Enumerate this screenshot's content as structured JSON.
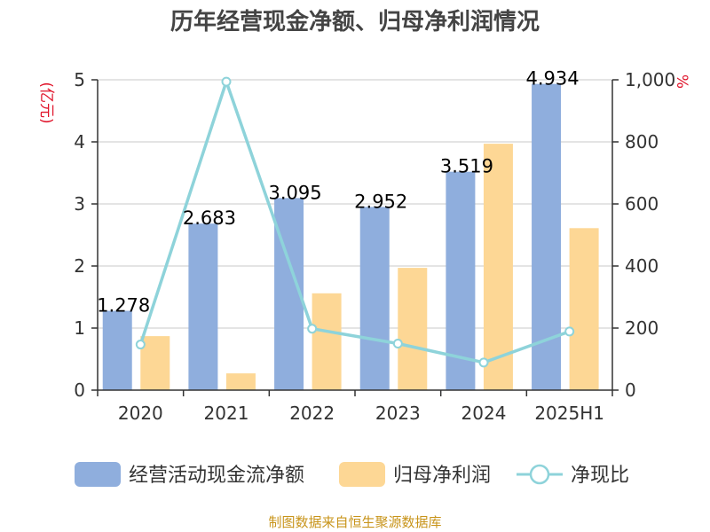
{
  "colors": {
    "bar_cash": "#8FAEDD",
    "bar_profit": "#FDD795",
    "line": "#8ED3DA",
    "axis": "#333333",
    "grid": "#C8C8C8",
    "unit": "#E0142A",
    "source": "#C8941A"
  },
  "chart_data": {
    "type": "bar",
    "title": "历年经营现金净额、归母净利润情况",
    "categories": [
      "2020",
      "2021",
      "2022",
      "2023",
      "2024",
      "2025H1"
    ],
    "left_axis": {
      "unit_label": "(亿元)",
      "min": 0,
      "max": 5,
      "ticks": [
        0,
        1,
        2,
        3,
        4,
        5
      ],
      "tick_labels": [
        "0",
        "1",
        "2",
        "3",
        "4",
        "5"
      ]
    },
    "right_axis": {
      "unit_label": "%",
      "min": 0,
      "max": 1000,
      "ticks": [
        0,
        200,
        400,
        600,
        800,
        1000
      ],
      "tick_labels": [
        "0",
        "200",
        "400",
        "600",
        "800",
        "1,000"
      ]
    },
    "series": [
      {
        "name": "经营活动现金流净额",
        "kind": "bar",
        "axis": "left",
        "values": [
          1.278,
          2.683,
          3.095,
          2.952,
          3.519,
          4.934
        ],
        "data_labels": [
          "1.278",
          "2.683",
          "3.095",
          "2.952",
          "3.519",
          "4.934"
        ]
      },
      {
        "name": "归母净利润",
        "kind": "bar",
        "axis": "left",
        "values": [
          0.87,
          0.27,
          1.56,
          1.97,
          3.97,
          2.61
        ]
      },
      {
        "name": "净现比",
        "kind": "line",
        "axis": "right",
        "values": [
          147,
          994,
          198,
          150,
          89,
          189
        ]
      }
    ],
    "grid": true,
    "legend_position": "bottom"
  },
  "source": "制图数据来自恒生聚源数据库"
}
